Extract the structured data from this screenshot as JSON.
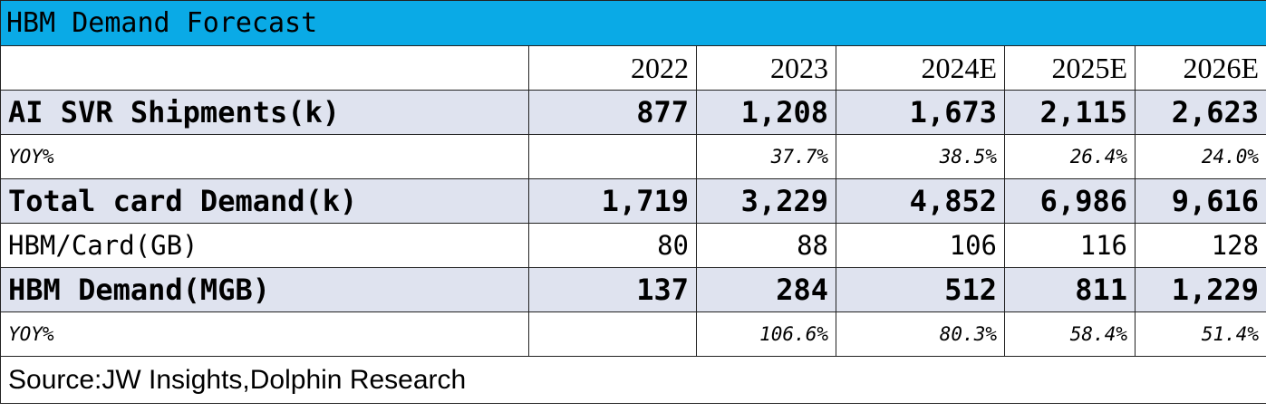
{
  "table": {
    "title": "HBM Demand Forecast",
    "columns": [
      "2022",
      "2023",
      "2024E",
      "2025E",
      "2026E"
    ],
    "rows": [
      {
        "label": "AI SVR Shipments(k)",
        "cells": [
          "877",
          "1,208",
          "1,673",
          "2,115",
          "2,623"
        ]
      },
      {
        "label": "YOY%",
        "cells": [
          null,
          "37.7%",
          "38.5%",
          "26.4%",
          "24.0%"
        ]
      },
      {
        "label": "Total card Demand(k)",
        "cells": [
          "1,719",
          "3,229",
          "4,852",
          "6,986",
          "9,616"
        ]
      },
      {
        "label": "HBM/Card(GB)",
        "cells": [
          "80",
          "88",
          "106",
          "116",
          "128"
        ]
      },
      {
        "label": "HBM Demand(MGB)",
        "cells": [
          "137",
          "284",
          "512",
          "811",
          "1,229"
        ]
      },
      {
        "label": "YOY%",
        "cells": [
          null,
          "106.6%",
          "80.3%",
          "58.4%",
          "51.4%"
        ]
      }
    ],
    "source": "Source:JW Insights,Dolphin Research"
  }
}
